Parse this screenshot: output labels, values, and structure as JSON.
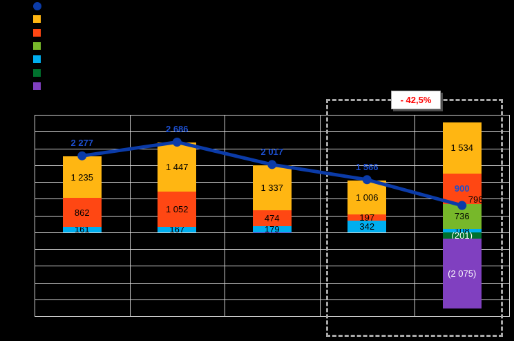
{
  "legend": {
    "labels_visible": false,
    "swatches": [
      {
        "shape": "circle",
        "color": "#0B3BA8",
        "name": "line-series-swatch"
      },
      {
        "shape": "square",
        "color": "#FFB612",
        "name": "yellow-series-swatch"
      },
      {
        "shape": "square",
        "color": "#FF4713",
        "name": "orange-series-swatch"
      },
      {
        "shape": "square",
        "color": "#77B82A",
        "name": "green-series-swatch"
      },
      {
        "shape": "square",
        "color": "#00AEEF",
        "name": "cyan-series-swatch"
      },
      {
        "shape": "square",
        "color": "#00702D",
        "name": "darkgreen-series-swatch"
      },
      {
        "shape": "square",
        "color": "#8040C0",
        "name": "purple-series-swatch"
      }
    ]
  },
  "chart_data": {
    "type": "bar",
    "subtype": "stacked-bar-with-line-overlay",
    "title": "",
    "xlabel": "",
    "ylabel": "",
    "categories": [
      "",
      "",
      "",
      "",
      ""
    ],
    "category_labels_visible": false,
    "ylim": [
      -2500,
      3500
    ],
    "grid_step": 500,
    "grid": true,
    "colors": {
      "yellow": "#FFB612",
      "orange": "#FF4713",
      "green": "#77B82A",
      "cyan": "#00AEEF",
      "darkgreen": "#00702D",
      "purple": "#8040C0",
      "line": "#0B3BA8",
      "line_label": "#1C4FD0",
      "grid": "#D6D6D6",
      "background": "#000000",
      "callout_text": "#FF0000"
    },
    "bars": [
      {
        "segments": [
          {
            "color": "cyan",
            "value": 161,
            "label": "161"
          },
          {
            "color": "orange",
            "value": 862,
            "label": "862"
          },
          {
            "color": "yellow",
            "value": 1235,
            "label": "1 235"
          }
        ]
      },
      {
        "segments": [
          {
            "color": "cyan",
            "value": 167,
            "label": "167"
          },
          {
            "color": "orange",
            "value": 1052,
            "label": "1 052"
          },
          {
            "color": "yellow",
            "value": 1447,
            "label": "1 447"
          }
        ]
      },
      {
        "segments": [
          {
            "color": "purple",
            "value": -35,
            "label": ""
          },
          {
            "color": "cyan",
            "value": 179,
            "label": "179"
          },
          {
            "color": "orange",
            "value": 474,
            "label": "474"
          },
          {
            "color": "yellow",
            "value": 1337,
            "label": "1 337"
          }
        ]
      },
      {
        "segments": [
          {
            "color": "cyan",
            "value": 342,
            "label": "342"
          },
          {
            "color": "orange",
            "value": 197,
            "label": "197"
          },
          {
            "color": "yellow",
            "value": 1006,
            "label": "1 006"
          }
        ]
      },
      {
        "segments": [
          {
            "color": "cyan",
            "value": 108,
            "label": "108"
          },
          {
            "color": "green",
            "value": 736,
            "label": "736"
          },
          {
            "color": "orange",
            "value": 900,
            "label": "900",
            "label_style": "blue-bold"
          },
          {
            "color": "yellow",
            "value": 1534,
            "label": "1 534"
          },
          {
            "color": "darkgreen",
            "value": -201,
            "label": "(201)",
            "label_style": "white"
          },
          {
            "color": "purple",
            "value": -2075,
            "label": "(2 075)",
            "label_style": "white"
          }
        ]
      }
    ],
    "line_series": {
      "values": [
        2277,
        2686,
        2017,
        1566,
        798
      ],
      "labels": [
        "2 277",
        "2 686",
        "2 017",
        "1 566",
        "798"
      ],
      "label_placement": [
        "above",
        "above",
        "above",
        "above",
        "right"
      ]
    },
    "annotation": {
      "label": "- 42,5%",
      "highlight_box": "dashed box around last two columns"
    }
  }
}
